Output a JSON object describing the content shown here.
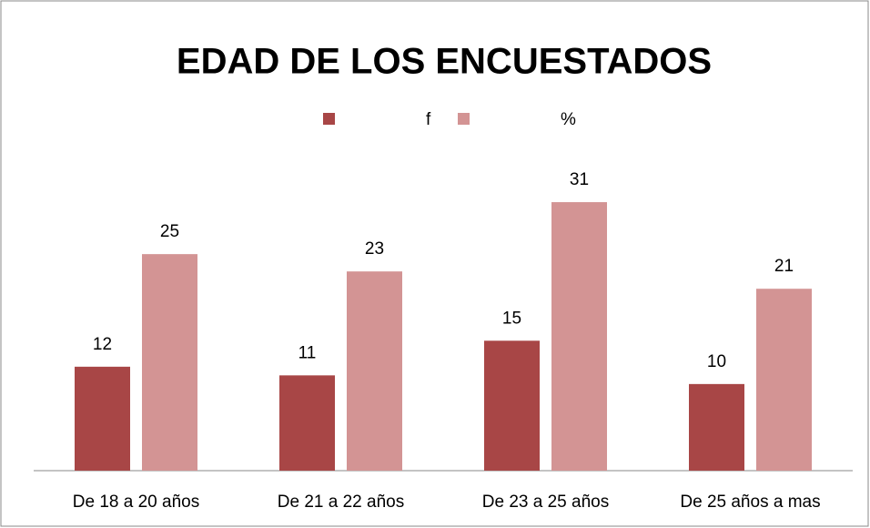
{
  "chart_data": {
    "type": "bar",
    "title": "EDAD DE LOS ENCUESTADOS",
    "categories": [
      "De 18 a 20 años",
      "De 21 a 22 años",
      "De 23 a 25 años",
      "De 25 años a mas"
    ],
    "series": [
      {
        "name": "f",
        "color": "#a84646",
        "values": [
          12,
          11,
          15,
          10
        ]
      },
      {
        "name": "%",
        "color": "#d39494",
        "values": [
          25,
          23,
          31,
          21
        ]
      }
    ],
    "ylim": [
      0,
      35
    ],
    "legend": "top"
  }
}
